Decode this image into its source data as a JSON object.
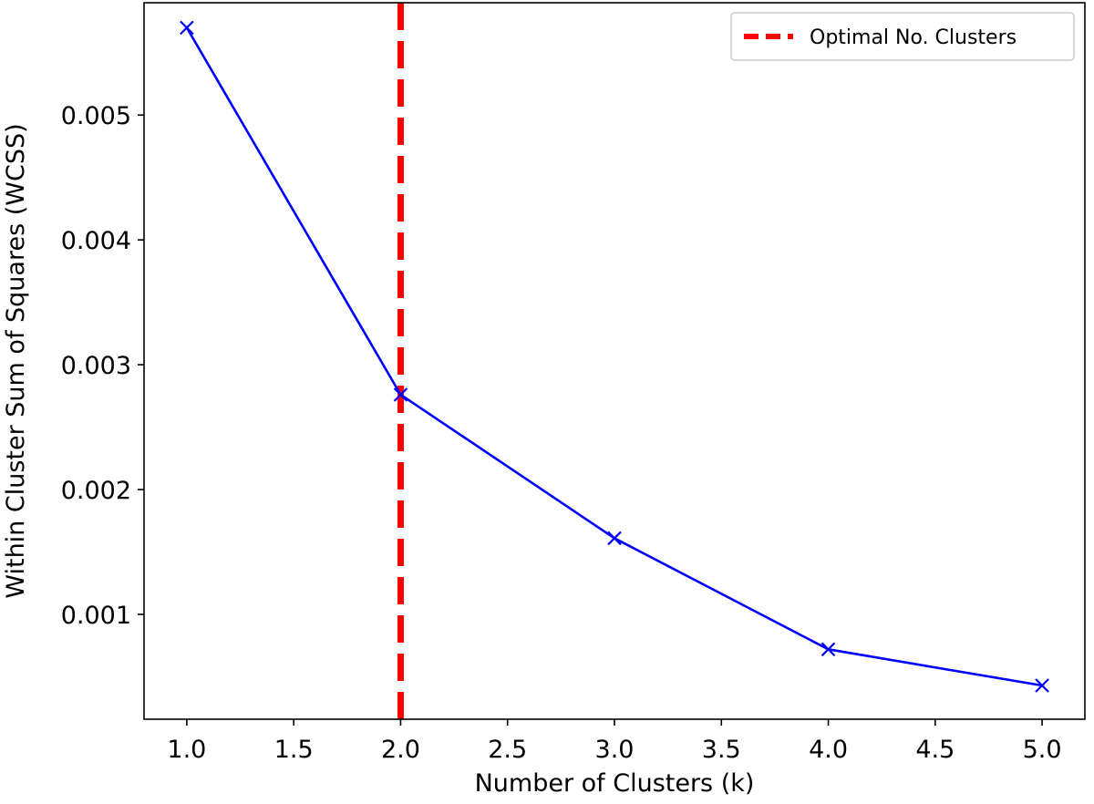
{
  "chart_data": {
    "type": "line",
    "xlabel": "Number of Clusters (k)",
    "ylabel": "Within Cluster Sum of Squares (WCSS)",
    "x": [
      1,
      2,
      3,
      4,
      5
    ],
    "series": [
      {
        "values": [
          0.0057,
          0.00276,
          0.00161,
          0.00072,
          0.00043
        ],
        "color": "#0000ff",
        "marker": "x"
      }
    ],
    "reference_lines": [
      {
        "orientation": "vertical",
        "x": 2.0,
        "label": "Optimal No. Clusters",
        "color": "#ff0000",
        "style": "dashed"
      }
    ],
    "xlim": [
      0.8,
      5.2
    ],
    "ylim": [
      0.00016,
      0.0059
    ],
    "xticks": [
      1.0,
      1.5,
      2.0,
      2.5,
      3.0,
      3.5,
      4.0,
      4.5,
      5.0
    ],
    "xtick_labels": [
      "1.0",
      "1.5",
      "2.0",
      "2.5",
      "3.0",
      "3.5",
      "4.0",
      "4.5",
      "5.0"
    ],
    "yticks": [
      0.001,
      0.002,
      0.003,
      0.004,
      0.005
    ],
    "ytick_labels": [
      "0.001",
      "0.002",
      "0.003",
      "0.004",
      "0.005"
    ],
    "grid": false,
    "legend": {
      "position": "top-right",
      "entries": [
        "Optimal No. Clusters"
      ]
    }
  }
}
